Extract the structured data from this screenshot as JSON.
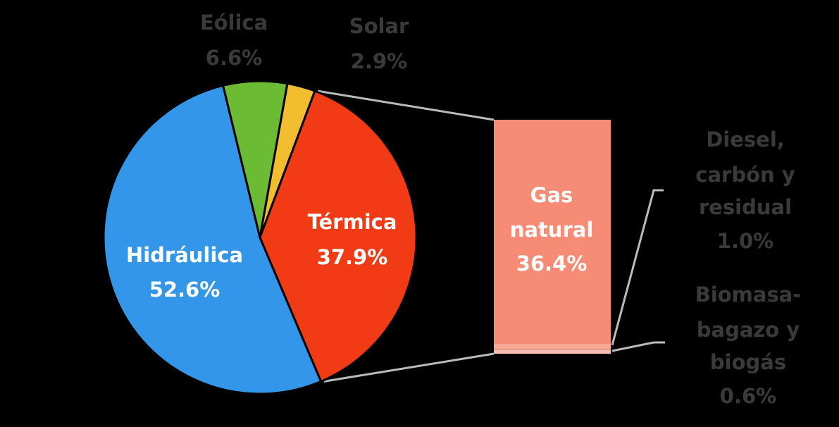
{
  "chart_data": {
    "type": "pie",
    "slices": [
      {
        "name": "Hidráulica",
        "value": 52.6,
        "value_text": "52.6%",
        "color": "#3396E8"
      },
      {
        "name": "Eólica",
        "value": 6.6,
        "value_text": "6.6%",
        "color": "#6BBB34"
      },
      {
        "name": "Solar",
        "value": 2.9,
        "value_text": "2.9%",
        "color": "#F2BE30"
      },
      {
        "name": "Térmica",
        "value": 37.9,
        "value_text": "37.9%",
        "color": "#F13B14"
      }
    ],
    "breakdown": {
      "of": "Térmica",
      "type": "stacked-bar",
      "segments": [
        {
          "name": "Gas natural",
          "value": 36.4,
          "value_text": "36.4%",
          "color": "#F78C76"
        },
        {
          "name": "Diesel, carbón y residual",
          "value": 1.0,
          "value_text": "1.0%",
          "color": "#F9A894"
        },
        {
          "name": "Biomasa-bagazo y biogás",
          "value": 0.6,
          "value_text": "0.6%",
          "color": "#FBBDB0"
        }
      ]
    },
    "label_colors": {
      "inside": "#FFFFFF",
      "outside": "#3A3A3A",
      "connector": "#BBBBBB"
    }
  }
}
